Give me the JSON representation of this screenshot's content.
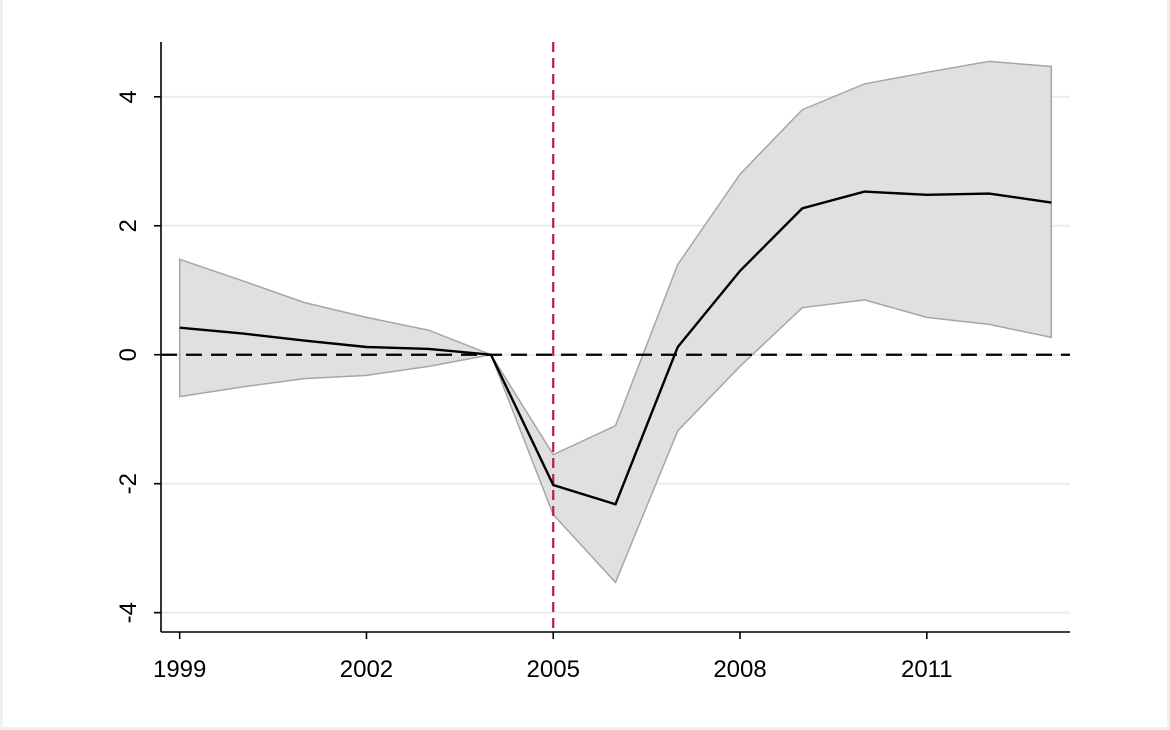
{
  "chart_data": {
    "type": "line",
    "title": "",
    "xlabel": "",
    "ylabel": "",
    "x": [
      1999,
      2000,
      2001,
      2002,
      2003,
      2004,
      2005,
      2006,
      2007,
      2008,
      2009,
      2010,
      2011,
      2012,
      2013
    ],
    "series": [
      {
        "values": [
          0.42,
          0.33,
          0.22,
          0.12,
          0.09,
          0.0,
          -2.02,
          -2.32,
          0.12,
          1.3,
          2.27,
          2.53,
          2.48,
          2.5,
          2.36
        ]
      }
    ],
    "confidence_band": {
      "upper": [
        1.48,
        1.15,
        0.81,
        0.58,
        0.38,
        0.0,
        -1.55,
        -1.1,
        1.4,
        2.8,
        3.8,
        4.2,
        4.38,
        4.55,
        4.47
      ],
      "lower": [
        -0.65,
        -0.5,
        -0.37,
        -0.32,
        -0.18,
        0.0,
        -2.48,
        -3.53,
        -1.18,
        -0.18,
        0.73,
        0.85,
        0.58,
        0.47,
        0.27
      ]
    },
    "reference_lines": {
      "horizontal_y": 0,
      "vertical_x": 2005
    },
    "xlim": [
      1998.7,
      2013.3
    ],
    "ylim": [
      -4.3,
      4.85
    ],
    "x_ticks": [
      "1999",
      "2002",
      "2005",
      "2008",
      "2011"
    ],
    "y_ticks": [
      "-4",
      "-2",
      "0",
      "2",
      "4"
    ],
    "grid": "horizontal",
    "colors": {
      "line": "#000000",
      "band_fill": "#e0e0e0",
      "band_edge": "#a6a6a6",
      "vertical_ref": "#c4154b",
      "horizontal_ref": "#000000",
      "grid": "#e6eef2"
    }
  }
}
